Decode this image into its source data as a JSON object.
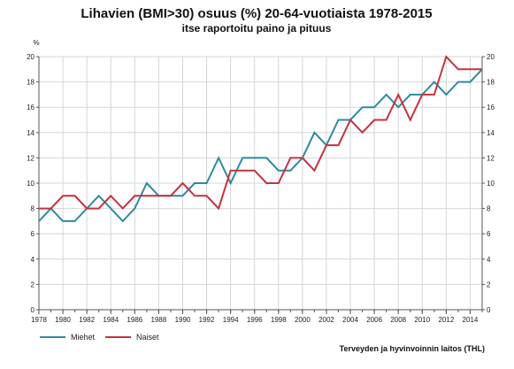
{
  "chart_data": {
    "type": "line",
    "title": "Lihavien (BMI>30) osuus (%) 20-64-vuotiaista 1978-2015",
    "subtitle": "itse raportoitu paino ja pituus",
    "ylabel": "%",
    "xlabel": "",
    "ylim": [
      0,
      20
    ],
    "xlim": [
      1978,
      2015
    ],
    "yticks": [
      "0",
      "2",
      "4",
      "6",
      "8",
      "10",
      "12",
      "14",
      "16",
      "18",
      "20"
    ],
    "xticks": [
      "1978",
      "1980",
      "1982",
      "1984",
      "1986",
      "1988",
      "1990",
      "1992",
      "1994",
      "1996",
      "1998",
      "2000",
      "2002",
      "2004",
      "2006",
      "2008",
      "2010",
      "2012",
      "2014"
    ],
    "grid": true,
    "legend_placement": "bottom-left",
    "x": [
      1978,
      1979,
      1980,
      1981,
      1982,
      1983,
      1984,
      1985,
      1986,
      1987,
      1988,
      1989,
      1990,
      1991,
      1992,
      1993,
      1994,
      1995,
      1996,
      1997,
      1998,
      1999,
      2000,
      2001,
      2002,
      2003,
      2004,
      2005,
      2006,
      2007,
      2008,
      2009,
      2010,
      2011,
      2012,
      2013,
      2014,
      2015
    ],
    "series": [
      {
        "name": "Miehet",
        "color": "#2e8aa1",
        "values": [
          7,
          8,
          7,
          7,
          8,
          9,
          8,
          7,
          8,
          10,
          9,
          9,
          9,
          10,
          10,
          12,
          10,
          12,
          12,
          12,
          11,
          11,
          12,
          14,
          13,
          15,
          15,
          16,
          16,
          17,
          16,
          17,
          17,
          18,
          17,
          18,
          18,
          19
        ]
      },
      {
        "name": "Naiset",
        "color": "#c4323f",
        "values": [
          8,
          8,
          9,
          9,
          8,
          8,
          9,
          8,
          9,
          9,
          9,
          9,
          10,
          9,
          9,
          8,
          11,
          11,
          11,
          10,
          10,
          12,
          12,
          11,
          13,
          13,
          15,
          14,
          15,
          15,
          17,
          15,
          17,
          17,
          20,
          19,
          19,
          19
        ]
      }
    ],
    "source": "Terveyden ja hyvinvoinnin laitos (THL)"
  }
}
